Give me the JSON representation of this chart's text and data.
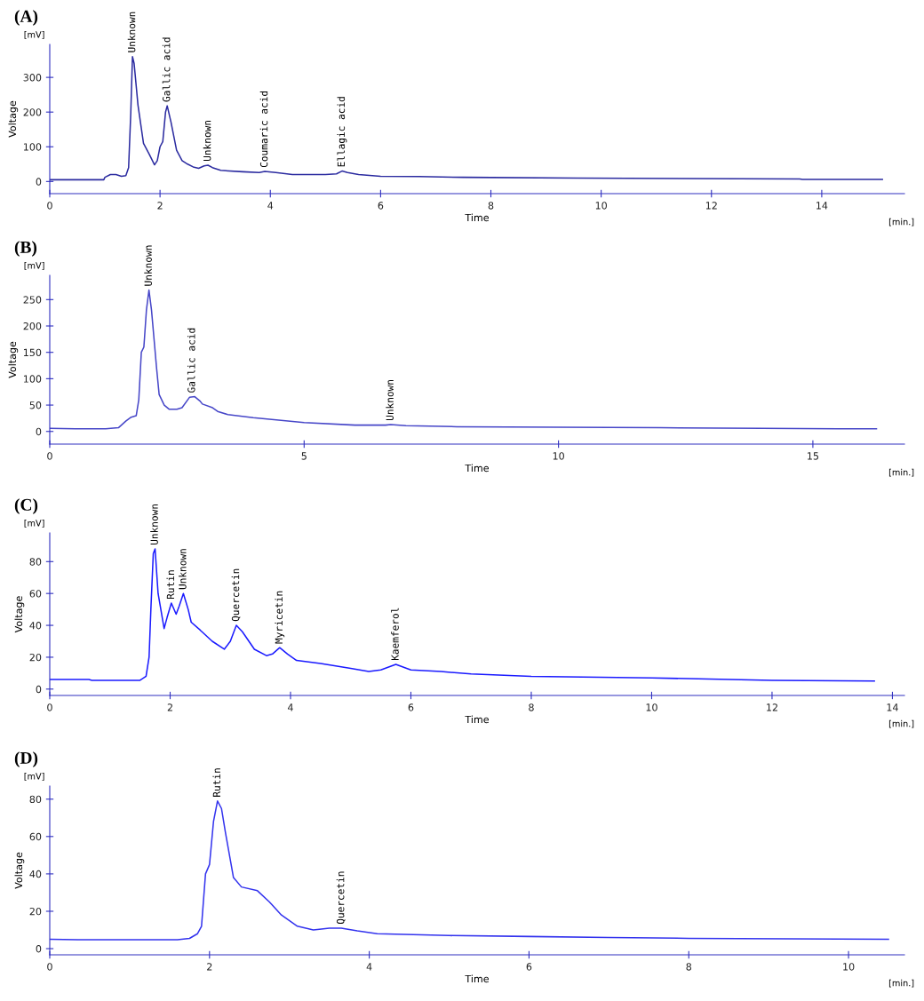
{
  "chart_data": [
    {
      "type": "line",
      "title": "(A)",
      "xlabel": "Time",
      "ylabel": "Voltage",
      "xlim": [
        0,
        15.5
      ],
      "xticks": [
        0,
        2,
        4,
        6,
        8,
        10,
        12,
        14
      ],
      "ylim": [
        -35,
        395
      ],
      "yticks": [
        0,
        100,
        200,
        300
      ],
      "grid": false,
      "x": [
        0,
        0.98,
        1.0,
        1.1,
        1.2,
        1.3,
        1.38,
        1.43,
        1.47,
        1.5,
        1.53,
        1.6,
        1.7,
        1.8,
        1.9,
        1.95,
        2.0,
        2.05,
        2.1,
        2.13,
        2.2,
        2.3,
        2.4,
        2.5,
        2.6,
        2.7,
        2.8,
        2.87,
        2.95,
        3.1,
        3.5,
        3.8,
        3.9,
        4.1,
        4.4,
        5.0,
        5.2,
        5.3,
        5.4,
        5.6,
        6.0,
        6.7,
        7.5,
        9.55,
        13.6,
        13.65,
        15.1
      ],
      "series": [
        {
          "color": "#2b2ba0",
          "values": [
            5,
            5,
            12,
            20,
            20,
            15,
            17,
            40,
            200,
            360,
            340,
            220,
            110,
            80,
            48,
            60,
            100,
            115,
            200,
            218,
            170,
            90,
            60,
            50,
            42,
            38,
            45,
            47,
            40,
            32,
            28,
            26,
            29,
            26,
            20,
            20,
            22,
            30,
            26,
            20,
            15,
            14,
            12,
            10,
            7,
            6,
            6
          ]
        }
      ],
      "annotations": [
        "[mV]",
        "[min.]",
        {
          "text": "Unknown",
          "x": 1.5,
          "y": 360
        },
        {
          "text": "Gallic acid",
          "x": 2.13,
          "y": 218
        },
        {
          "text": "Unknown",
          "x": 2.87,
          "y": 47
        },
        {
          "text": "Coumaric acid",
          "x": 3.9,
          "y": 29
        },
        {
          "text": "Ellagic acid",
          "x": 5.3,
          "y": 30
        }
      ]
    },
    {
      "type": "line",
      "title": "(B)",
      "xlabel": "Time",
      "ylabel": "Voltage",
      "xlim": [
        0,
        16.8
      ],
      "xticks": [
        0,
        5,
        10,
        15
      ],
      "ylim": [
        -24,
        296
      ],
      "yticks": [
        0,
        50,
        100,
        150,
        200,
        250
      ],
      "grid": false,
      "x": [
        0,
        0.5,
        1.1,
        1.35,
        1.5,
        1.6,
        1.7,
        1.75,
        1.8,
        1.85,
        1.9,
        1.95,
        2.0,
        2.1,
        2.15,
        2.25,
        2.35,
        2.5,
        2.6,
        2.75,
        2.85,
        2.95,
        3.0,
        3.2,
        3.3,
        3.5,
        4.0,
        5.0,
        6.0,
        6.6,
        6.7,
        7.0,
        8,
        10,
        12,
        14,
        15.5,
        16.25
      ],
      "series": [
        {
          "color": "#4646c8",
          "values": [
            6,
            5,
            5,
            7,
            20,
            27,
            30,
            60,
            150,
            160,
            230,
            268,
            230,
            120,
            70,
            50,
            42,
            42,
            45,
            65,
            66,
            58,
            52,
            45,
            38,
            32,
            26,
            17,
            12,
            12,
            13,
            11,
            9,
            8,
            7,
            6,
            5,
            5
          ]
        }
      ],
      "annotations": [
        "[mV]",
        "[min.]",
        {
          "text": "Unknown",
          "x": 1.95,
          "y": 268
        },
        {
          "text": "Gallic acid",
          "x": 2.8,
          "y": 66
        },
        {
          "text": "Unknown",
          "x": 6.7,
          "y": 13
        }
      ]
    },
    {
      "type": "line",
      "title": "(C)",
      "xlabel": "Time",
      "ylabel": "Voltage",
      "xlim": [
        0,
        14.2
      ],
      "xticks": [
        0,
        2,
        4,
        6,
        8,
        10,
        12,
        14
      ],
      "ylim": [
        -4,
        98
      ],
      "yticks": [
        0,
        20,
        40,
        60,
        80
      ],
      "grid": false,
      "x": [
        0,
        0.65,
        0.7,
        1.5,
        1.6,
        1.65,
        1.68,
        1.72,
        1.75,
        1.8,
        1.9,
        1.95,
        2.02,
        2.1,
        2.15,
        2.22,
        2.3,
        2.35,
        2.5,
        2.7,
        2.9,
        3.0,
        3.1,
        3.2,
        3.4,
        3.6,
        3.7,
        3.82,
        3.95,
        4.1,
        4.5,
        5,
        5.3,
        5.5,
        5.75,
        6.0,
        6.5,
        7,
        8,
        10,
        12,
        13.7
      ],
      "series": [
        {
          "color": "#1a1aff",
          "values": [
            6,
            6,
            5.5,
            5.5,
            8,
            20,
            50,
            85,
            88,
            60,
            38,
            45,
            54,
            47,
            52,
            60,
            50,
            42,
            37,
            30,
            25,
            30,
            40,
            36,
            25,
            21,
            22,
            26,
            22,
            18,
            16,
            13,
            11,
            12,
            15.5,
            12,
            11,
            9.5,
            8,
            7,
            5.5,
            5
          ]
        }
      ],
      "annotations": [
        "[mV]",
        "[min.]",
        {
          "text": "Unknown",
          "x": 1.75,
          "y": 88
        },
        {
          "text": "Rutin",
          "x": 2.02,
          "y": 54
        },
        {
          "text": "Unknown",
          "x": 2.22,
          "y": 60
        },
        {
          "text": "Quercetin",
          "x": 3.1,
          "y": 40
        },
        {
          "text": "Myricetin",
          "x": 3.82,
          "y": 26
        },
        {
          "text": "Kaemferol",
          "x": 5.75,
          "y": 15.5
        }
      ]
    },
    {
      "type": "line",
      "title": "(D)",
      "xlabel": "Time",
      "ylabel": "Voltage",
      "xlim": [
        0,
        10.7
      ],
      "xticks": [
        0,
        2,
        4,
        6,
        8,
        10
      ],
      "ylim": [
        -3.3,
        87
      ],
      "yticks": [
        0,
        20,
        40,
        60,
        80
      ],
      "grid": false,
      "x": [
        0,
        0.35,
        1.6,
        1.75,
        1.85,
        1.9,
        1.95,
        1.98,
        2.0,
        2.05,
        2.1,
        2.15,
        2.2,
        2.3,
        2.4,
        2.6,
        2.75,
        2.9,
        3.1,
        3.3,
        3.5,
        3.65,
        3.85,
        4.1,
        5,
        6,
        7,
        8,
        10.5
      ],
      "series": [
        {
          "color": "#3333ee",
          "values": [
            5,
            4.8,
            4.8,
            5.5,
            8,
            12,
            40,
            43,
            45,
            68,
            79,
            75,
            62,
            38,
            33,
            31,
            25,
            18,
            12,
            10,
            11,
            11,
            9.5,
            8,
            7,
            6.5,
            6,
            5.5,
            5
          ]
        }
      ],
      "annotations": [
        "[mV]",
        "[min.]",
        {
          "text": "Rutin",
          "x": 2.1,
          "y": 79
        },
        {
          "text": "Quercetin",
          "x": 3.65,
          "y": 11
        }
      ]
    }
  ]
}
